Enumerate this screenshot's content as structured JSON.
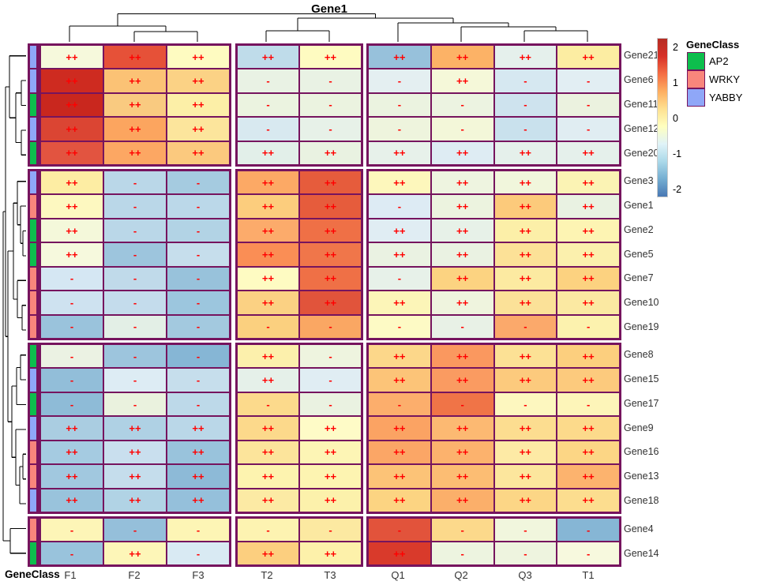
{
  "title": "Gene1",
  "corner_label": "GeneClass",
  "colors": {
    "cell_border": "#76145E",
    "cell_text": "#FF0000",
    "dendrogram": "#000000",
    "class_colors": {
      "AP2": "#0DBE4D",
      "WRKY": "#F9867C",
      "YABBY": "#8FA7F8"
    }
  },
  "legend": {
    "title": "GeneClass",
    "items": [
      {
        "label": "AP2",
        "color": "#0DBE4D"
      },
      {
        "label": "WRKY",
        "color": "#F9867C"
      },
      {
        "label": "YABBY",
        "color": "#8FA7F8"
      }
    ]
  },
  "colorbar": {
    "ticks": [
      "2",
      "1",
      "0",
      "-1",
      "-2"
    ],
    "gradient": [
      "#B52C23",
      "#D73027",
      "#F46D43",
      "#FDAE61",
      "#FEE090",
      "#FFFFBF",
      "#E0F3F8",
      "#ABD9E9",
      "#74ADD1",
      "#4878B4"
    ]
  },
  "chart_data": {
    "type": "heatmap",
    "title": "Gene1",
    "value_legend": "cells annotated ++ or - (significance marks), fill = row-scaled expression (-2..2, RdYlBu reversed)",
    "columns": [
      "F1",
      "F2",
      "F3",
      "T2",
      "T3",
      "Q1",
      "Q2",
      "Q3",
      "T1"
    ],
    "col_groups": [
      [
        0,
        1,
        2
      ],
      [
        3,
        4
      ],
      [
        5,
        6,
        7,
        8
      ]
    ],
    "row_groups": [
      [
        0,
        4
      ],
      [
        5,
        11
      ],
      [
        12,
        18
      ],
      [
        19,
        20
      ]
    ],
    "rows": [
      {
        "name": "Gene21",
        "class": "YABBY",
        "values": [
          "++",
          "++",
          "++",
          "++",
          "++",
          "++",
          "++",
          "++",
          "++"
        ],
        "colors": [
          "#F6F9DC",
          "#E65138",
          "#FEFBC1",
          "#BFDCEA",
          "#FEFBC1",
          "#97C1DB",
          "#FCB266",
          "#E5F0EC",
          "#FCEDA2"
        ]
      },
      {
        "name": "Gene6",
        "class": "YABBY",
        "values": [
          "++",
          "++",
          "++",
          "-",
          "-",
          "-",
          "++",
          "-",
          "-"
        ],
        "colors": [
          "#CE2B20",
          "#FBC275",
          "#FBD285",
          "#E9F2E4",
          "#E9F2E4",
          "#E4EFF1",
          "#F5F8D9",
          "#D6E8F1",
          "#E2EEF3"
        ]
      },
      {
        "name": "Gene11",
        "class": "AP2",
        "values": [
          "++",
          "++",
          "++",
          "-",
          "-",
          "-",
          "-",
          "-",
          "-"
        ],
        "colors": [
          "#C9271E",
          "#F9CA80",
          "#FCEFA7",
          "#EBF3E0",
          "#EBF3E0",
          "#EBF3E0",
          "#ECF3E1",
          "#CEE3EE",
          "#EBF2DF"
        ]
      },
      {
        "name": "Gene12",
        "class": "YABBY",
        "values": [
          "++",
          "++",
          "++",
          "-",
          "-",
          "-",
          "-",
          "-",
          "-"
        ],
        "colors": [
          "#DB4533",
          "#FCA55F",
          "#FCE59C",
          "#D8E9F0",
          "#E7F1E8",
          "#EEF4DD",
          "#F3F7D9",
          "#C9E1ED",
          "#E0EDF2"
        ]
      },
      {
        "name": "Gene20",
        "class": "AP2",
        "values": [
          "++",
          "++",
          "++",
          "++",
          "++",
          "++",
          "++",
          "++",
          "++"
        ],
        "colors": [
          "#E25440",
          "#FCA763",
          "#FBC97E",
          "#E2EFE9",
          "#E9F2E1",
          "#E7F1EA",
          "#DEECF3",
          "#E5F0EB",
          "#E5F0EB"
        ]
      },
      {
        "name": "Gene3",
        "class": "YABBY",
        "values": [
          "++",
          "-",
          "-",
          "++",
          "++",
          "++",
          "++",
          "++",
          "++"
        ],
        "colors": [
          "#FDEDA3",
          "#BAD7E8",
          "#A5CBE0",
          "#FCA965",
          "#E65C3C",
          "#FDF7BC",
          "#EEF4E0",
          "#F1F6DC",
          "#FBF3B4"
        ]
      },
      {
        "name": "Gene1",
        "class": "WRKY",
        "values": [
          "++",
          "-",
          "-",
          "++",
          "++",
          "-",
          "++",
          "++",
          "++"
        ],
        "colors": [
          "#FDF8C0",
          "#BAD7E8",
          "#BBD8E9",
          "#FCCD7D",
          "#E65C3C",
          "#DDEBF4",
          "#ECF3DF",
          "#FCCA7B",
          "#E9F2E2"
        ]
      },
      {
        "name": "Gene2",
        "class": "AP2",
        "values": [
          "++",
          "-",
          "-",
          "++",
          "++",
          "++",
          "++",
          "++",
          "++"
        ],
        "colors": [
          "#F4F8DA",
          "#BAD7E8",
          "#B2D3E5",
          "#FCAB6B",
          "#EF7046",
          "#E0EDF3",
          "#E7F1E8",
          "#FCEFA8",
          "#FDF4B3"
        ]
      },
      {
        "name": "Gene5",
        "class": "AP2",
        "values": [
          "++",
          "-",
          "-",
          "++",
          "++",
          "++",
          "++",
          "++",
          "++"
        ],
        "colors": [
          "#F6F9DD",
          "#9DC5DD",
          "#C6DEEC",
          "#FA8E55",
          "#F0764A",
          "#EAF2E2",
          "#EAF2E2",
          "#FCE197",
          "#FBF0AD"
        ]
      },
      {
        "name": "Gene7",
        "class": "WRKY",
        "values": [
          "-",
          "-",
          "-",
          "++",
          "++",
          "-",
          "++",
          "++",
          "++"
        ],
        "colors": [
          "#D5E7F3",
          "#C0DAEA",
          "#98C2DB",
          "#FEFBC2",
          "#EF7046",
          "#E7F1E9",
          "#FCD381",
          "#FCEAA1",
          "#FCD280"
        ]
      },
      {
        "name": "Gene10",
        "class": "WRKY",
        "values": [
          "-",
          "-",
          "-",
          "++",
          "++",
          "++",
          "++",
          "++",
          "++"
        ],
        "colors": [
          "#CEE2F0",
          "#C4DCEC",
          "#9CC6DE",
          "#FBD183",
          "#E1543B",
          "#FCF5B8",
          "#EFF4DE",
          "#FBE198",
          "#FBE9A2"
        ]
      },
      {
        "name": "Gene19",
        "class": "WRKY",
        "values": [
          "-",
          "-",
          "-",
          "-",
          "-",
          "-",
          "-",
          "-",
          "-"
        ],
        "colors": [
          "#9AC3DC",
          "#E3EFE6",
          "#A3C9DF",
          "#FBD07F",
          "#FAA763",
          "#FDFAC5",
          "#E8F1E6",
          "#FBA96B",
          "#FCF2AE"
        ]
      },
      {
        "name": "Gene8",
        "class": "AP2",
        "values": [
          "-",
          "-",
          "-",
          "++",
          "-",
          "++",
          "++",
          "++",
          "++"
        ],
        "colors": [
          "#EBF2E3",
          "#9DC5DD",
          "#86B6D5",
          "#FCF0AC",
          "#EEF4DF",
          "#FCD78A",
          "#FA985F",
          "#FCE195",
          "#FCCF7E"
        ]
      },
      {
        "name": "Gene15",
        "class": "YABBY",
        "values": [
          "-",
          "-",
          "-",
          "++",
          "-",
          "++",
          "++",
          "++",
          "++"
        ],
        "colors": [
          "#92BED9",
          "#DDECF4",
          "#C6DEEC",
          "#E5F0E9",
          "#E0EDF3",
          "#FCC478",
          "#FA9B61",
          "#FCCA7D",
          "#FCCA7D"
        ]
      },
      {
        "name": "Gene17",
        "class": "AP2",
        "values": [
          "-",
          "-",
          "-",
          "-",
          "-",
          "-",
          "-",
          "-",
          "-"
        ],
        "colors": [
          "#8EBBD7",
          "#EAF2DE",
          "#BDD9E9",
          "#FCDA8C",
          "#EAF2E1",
          "#FCAE6C",
          "#F07447",
          "#FDF7BF",
          "#FDF5B9"
        ]
      },
      {
        "name": "Gene9",
        "class": "YABBY",
        "values": [
          "++",
          "++",
          "++",
          "++",
          "++",
          "++",
          "++",
          "++",
          "++"
        ],
        "colors": [
          "#AACDE1",
          "#AFD1E4",
          "#BAD7E8",
          "#FCD98B",
          "#FEFBC7",
          "#FBA363",
          "#FCB972",
          "#FCDD90",
          "#FCDA8B"
        ]
      },
      {
        "name": "Gene16",
        "class": "WRKY",
        "values": [
          "++",
          "++",
          "++",
          "++",
          "++",
          "++",
          "++",
          "++",
          "++"
        ],
        "colors": [
          "#A5CBE1",
          "#C9DFEE",
          "#99C3DC",
          "#FCE49B",
          "#FDF5B5",
          "#FBA666",
          "#FCB26D",
          "#FDEAA5",
          "#FCD685"
        ]
      },
      {
        "name": "Gene13",
        "class": "WRKY",
        "values": [
          "++",
          "++",
          "++",
          "++",
          "++",
          "++",
          "++",
          "++",
          "++"
        ],
        "colors": [
          "#A1C8DF",
          "#C5DDEC",
          "#8DBAD7",
          "#FDF3AF",
          "#FDF4B1",
          "#FCC377",
          "#FCBD73",
          "#FCE69D",
          "#FCB36E"
        ]
      },
      {
        "name": "Gene18",
        "class": "YABBY",
        "values": [
          "++",
          "++",
          "++",
          "++",
          "++",
          "++",
          "++",
          "++",
          "++"
        ],
        "colors": [
          "#99C3DC",
          "#B1D3E5",
          "#95C0DB",
          "#FCEAA4",
          "#FCF1AB",
          "#FCD482",
          "#FBAF6A",
          "#FCD686",
          "#FCDD8F"
        ]
      },
      {
        "name": "Gene4",
        "class": "WRKY",
        "values": [
          "-",
          "-",
          "-",
          "-",
          "-",
          "-",
          "-",
          "-",
          "-"
        ],
        "colors": [
          "#FDF5B7",
          "#95BFDA",
          "#FDF5B5",
          "#FDF3B1",
          "#FCE9A1",
          "#E2533B",
          "#FCD98B",
          "#F1F6DD",
          "#86B6D5"
        ]
      },
      {
        "name": "Gene14",
        "class": "AP2",
        "values": [
          "-",
          "++",
          "-",
          "++",
          "++",
          "++",
          "-",
          "-",
          "-"
        ],
        "colors": [
          "#99C3DC",
          "#FDF6B8",
          "#D9EAF3",
          "#FCCF7F",
          "#FDF1AA",
          "#D93A2B",
          "#EDF4E0",
          "#EEF4DF",
          "#F7F9DE"
        ]
      }
    ]
  }
}
